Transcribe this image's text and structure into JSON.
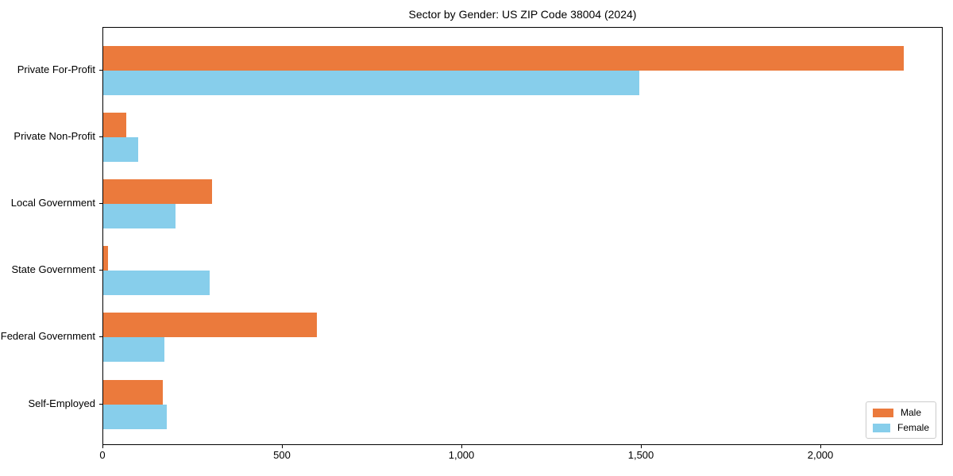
{
  "chart_data": {
    "type": "bar",
    "orientation": "horizontal",
    "title": "Sector by Gender: US ZIP Code 38004 (2024)",
    "categories": [
      "Private For-Profit",
      "Private Non-Profit",
      "Local Government",
      "State Government",
      "Federal Government",
      "Self-Employed"
    ],
    "series": [
      {
        "name": "Male",
        "color": "#EB7A3C",
        "values": [
          2229,
          64,
          304,
          13,
          594,
          166
        ]
      },
      {
        "name": "Female",
        "color": "#87CEEB",
        "values": [
          1493,
          97,
          202,
          297,
          171,
          177
        ]
      }
    ],
    "xlabel": "",
    "ylabel": "",
    "xlim": [
      0,
      2340
    ],
    "xticks": {
      "values": [
        0,
        500,
        1000,
        1500,
        2000
      ],
      "labels": [
        "0",
        "500",
        "1,000",
        "1,500",
        "2,000"
      ]
    },
    "grid": false,
    "legend": {
      "position": "lower right"
    }
  }
}
